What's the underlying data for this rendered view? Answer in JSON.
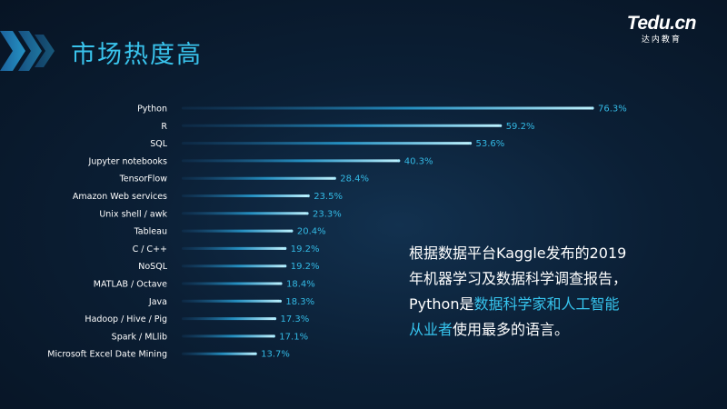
{
  "header": {
    "title": "市场热度高"
  },
  "brand": {
    "name": "Tedu.cn",
    "sub": "达内教育"
  },
  "chart_data": {
    "type": "bar",
    "orientation": "horizontal",
    "categories": [
      "Python",
      "R",
      "SQL",
      "Jupyter notebooks",
      "TensorFlow",
      "Amazon Web services",
      "Unix shell / awk",
      "Tableau",
      "C / C++",
      "NoSQL",
      "MATLAB / Octave",
      "Java",
      "Hadoop / Hive / Pig",
      "Spark / MLlib",
      "Microsoft Excel Date Mining"
    ],
    "values": [
      76.3,
      59.2,
      53.6,
      40.3,
      28.4,
      23.5,
      23.3,
      20.4,
      19.2,
      19.2,
      18.4,
      18.3,
      17.3,
      17.1,
      13.7
    ],
    "value_labels": [
      "76.3%",
      "59.2%",
      "53.6%",
      "40.3%",
      "28.4%",
      "23.5%",
      "23.3%",
      "20.4%",
      "19.2%",
      "19.2%",
      "18.4%",
      "18.3%",
      "17.3%",
      "17.1%",
      "13.7%"
    ],
    "unit": "%",
    "xlim": [
      0,
      76.3
    ],
    "grid": false,
    "colors": {
      "bar": "#2aa9e0",
      "bar_glow": "#a8ecff",
      "label": "#33b9e4"
    }
  },
  "note": {
    "line1": "根据数据平台Kaggle发布的2019",
    "line2": "年机器学习及数据科学调查报告，",
    "line3_a": "Python是",
    "line3_b": "数据科学家和人工智能",
    "line4_a": "从业者",
    "line4_b": "使用最多的语言。"
  },
  "watermark": {
    "text": ""
  }
}
